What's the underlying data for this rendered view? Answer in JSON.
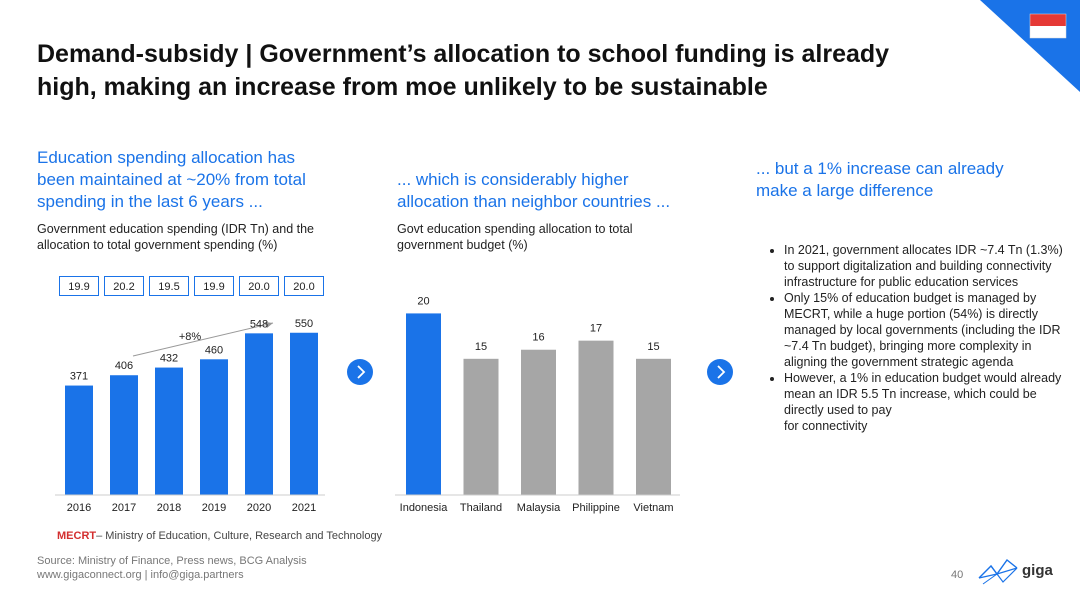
{
  "title": "Demand-subsidy | Government’s allocation to school funding is already high, making an increase from moe unlikely to be sustainable",
  "left": {
    "heading": "Education spending allocation has been maintained at ~20% from total spending in the last 6 years ...",
    "subtitle": "Government education spending (IDR Tn) and the allocation to total government spending (%)",
    "growth_label": "+8%"
  },
  "middle": {
    "heading": "... which is considerably higher allocation than neighbor countries ...",
    "subtitle": "Govt education spending allocation to total government budget (%)"
  },
  "right": {
    "heading": "... but a 1% increase can already make a large difference",
    "bullets": [
      "In 2021, government allocates IDR ~7.4 Tn (1.3%) to support digitalization and building connectivity infrastructure for public education services",
      "Only 15% of education budget is managed by MECRT, while a huge portion (54%) is directly managed by local governments (including the IDR ~7.4 Tn budget), bringing more complexity in aligning the government strategic agenda",
      "However, a 1% in education budget would already mean an IDR 5.5 Tn increase, which could be directly used to pay\nfor connectivity"
    ]
  },
  "footnote": {
    "abbr": "MECRT",
    "text": "– Ministry of Education, Culture, Research and Technology"
  },
  "source": "Source: Ministry of Finance, Press news, BCG Analysis",
  "contact": "www.gigaconnect.org  |  info@giga.partners",
  "page_number": "40",
  "logo_text": "giga",
  "colors": {
    "accent": "#1a73e8",
    "gray_bar": "#a6a6a6",
    "flag_red": "#e53935"
  },
  "icons": [
    "flag-icon",
    "chevron-right-icon",
    "giga-logo-icon"
  ],
  "chart_data": [
    {
      "type": "bar",
      "categories": [
        "2016",
        "2017",
        "2018",
        "2019",
        "2020",
        "2021"
      ],
      "values": [
        371,
        406,
        432,
        460,
        548,
        550
      ],
      "allocation_pct": [
        "19.9",
        "20.2",
        "19.5",
        "19.9",
        "20.0",
        "20.0"
      ],
      "annotation": "+8%",
      "color": "#1a73e8",
      "ylim": [
        0,
        800
      ]
    },
    {
      "type": "bar",
      "categories": [
        "Indonesia",
        "Thailand",
        "Malaysia",
        "Philippine",
        "Vietnam"
      ],
      "values": [
        20,
        15,
        16,
        17,
        15
      ],
      "colors": [
        "#1a73e8",
        "#a6a6a6",
        "#a6a6a6",
        "#a6a6a6",
        "#a6a6a6"
      ],
      "ylim": [
        0,
        25
      ]
    }
  ]
}
